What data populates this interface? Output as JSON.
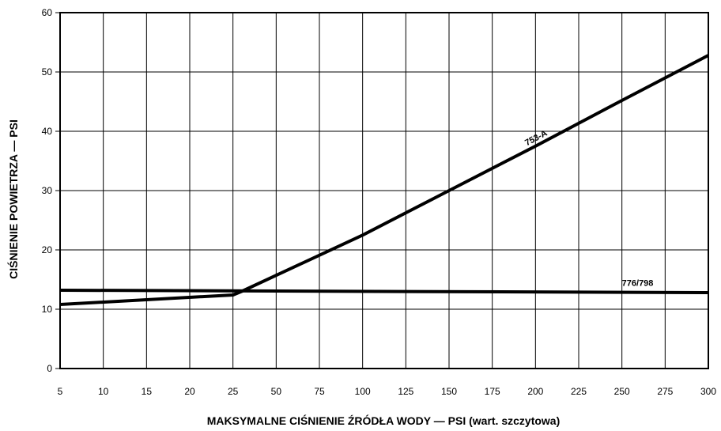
{
  "chart_data": {
    "type": "line",
    "xlabel": "MAKSYMALNE CIŚNIENIE ŹRÓDŁA WODY — PSI (wart. szczytowa)",
    "ylabel": "CIŚNIENIE POWIETRZA — PSI",
    "x_ticks": [
      "5",
      "10",
      "15",
      "20",
      "25",
      "50",
      "75",
      "100",
      "125",
      "150",
      "175",
      "200",
      "225",
      "250",
      "275",
      "300"
    ],
    "y_ticks": [
      0,
      10,
      20,
      30,
      40,
      50,
      60
    ],
    "ylim": [
      0,
      60
    ],
    "grid": true,
    "x_scale": "piecewise: 5–25 step 5 and 25–300 step 25, equal spacing per tick",
    "series": [
      {
        "name": "753-A",
        "points": [
          [
            5,
            10.8
          ],
          [
            25,
            12.4
          ],
          [
            30,
            13.0
          ],
          [
            100,
            22.5
          ],
          [
            150,
            30.0
          ],
          [
            200,
            37.5
          ],
          [
            250,
            45.2
          ],
          [
            300,
            52.8
          ]
        ]
      },
      {
        "name": "776/798",
        "points": [
          [
            5,
            13.2
          ],
          [
            300,
            12.8
          ]
        ]
      }
    ]
  },
  "colors": {
    "line": "#000000",
    "grid": "#000000",
    "background": "#ffffff"
  }
}
